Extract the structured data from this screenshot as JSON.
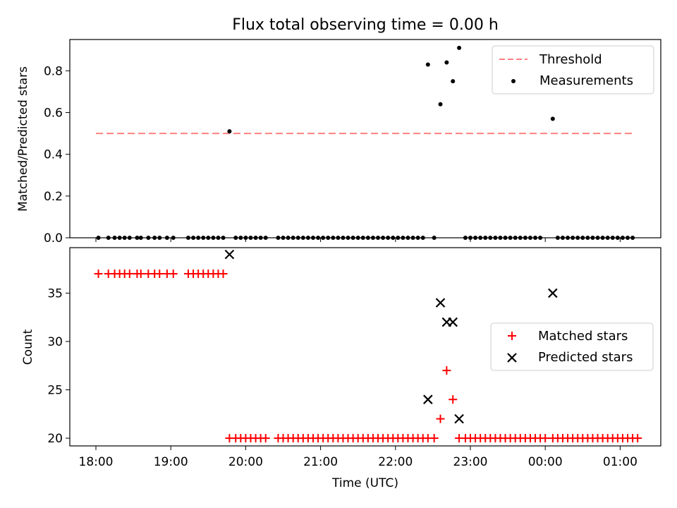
{
  "chart_data": [
    {
      "type": "scatter",
      "title": "Flux total observing time = 0.00 h",
      "xlabel": "",
      "ylabel": "Matched/Predicted stars",
      "ylim": [
        0,
        0.95
      ],
      "yticks": [
        0.0,
        0.2,
        0.4,
        0.6,
        0.8
      ],
      "ytick_labels": [
        "0.0",
        "0.2",
        "0.4",
        "0.6",
        "0.8"
      ],
      "legend_position": "top-right",
      "threshold": {
        "name": "Threshold",
        "value": 0.5,
        "x_start": "18:00",
        "x_end": "01:10",
        "color": "#ff8080",
        "style": "dashed"
      },
      "series": [
        {
          "name": "Measurements",
          "color": "#000000",
          "points": [
            {
              "x": "18:02",
              "y": 0.0
            },
            {
              "x": "18:10",
              "y": 0.0
            },
            {
              "x": "18:15",
              "y": 0.0
            },
            {
              "x": "18:19",
              "y": 0.0
            },
            {
              "x": "18:23",
              "y": 0.0
            },
            {
              "x": "18:27",
              "y": 0.0
            },
            {
              "x": "18:33",
              "y": 0.0
            },
            {
              "x": "18:36",
              "y": 0.0
            },
            {
              "x": "18:42",
              "y": 0.0
            },
            {
              "x": "18:47",
              "y": 0.0
            },
            {
              "x": "18:51",
              "y": 0.0
            },
            {
              "x": "18:57",
              "y": 0.0
            },
            {
              "x": "19:02",
              "y": 0.0
            },
            {
              "x": "19:14",
              "y": 0.0
            },
            {
              "x": "19:18",
              "y": 0.0
            },
            {
              "x": "19:22",
              "y": 0.0
            },
            {
              "x": "19:26",
              "y": 0.0
            },
            {
              "x": "19:30",
              "y": 0.0
            },
            {
              "x": "19:34",
              "y": 0.0
            },
            {
              "x": "19:38",
              "y": 0.0
            },
            {
              "x": "19:42",
              "y": 0.0
            },
            {
              "x": "19:47",
              "y": 0.51
            },
            {
              "x": "19:52",
              "y": 0.0
            },
            {
              "x": "19:56",
              "y": 0.0
            },
            {
              "x": "20:00",
              "y": 0.0
            },
            {
              "x": "20:04",
              "y": 0.0
            },
            {
              "x": "20:08",
              "y": 0.0
            },
            {
              "x": "20:12",
              "y": 0.0
            },
            {
              "x": "20:16",
              "y": 0.0
            },
            {
              "x": "20:26",
              "y": 0.0
            },
            {
              "x": "20:30",
              "y": 0.0
            },
            {
              "x": "20:34",
              "y": 0.0
            },
            {
              "x": "20:38",
              "y": 0.0
            },
            {
              "x": "20:42",
              "y": 0.0
            },
            {
              "x": "20:46",
              "y": 0.0
            },
            {
              "x": "20:50",
              "y": 0.0
            },
            {
              "x": "20:54",
              "y": 0.0
            },
            {
              "x": "20:58",
              "y": 0.0
            },
            {
              "x": "21:02",
              "y": 0.0
            },
            {
              "x": "21:06",
              "y": 0.0
            },
            {
              "x": "21:10",
              "y": 0.0
            },
            {
              "x": "21:14",
              "y": 0.0
            },
            {
              "x": "21:18",
              "y": 0.0
            },
            {
              "x": "21:22",
              "y": 0.0
            },
            {
              "x": "21:26",
              "y": 0.0
            },
            {
              "x": "21:30",
              "y": 0.0
            },
            {
              "x": "21:34",
              "y": 0.0
            },
            {
              "x": "21:38",
              "y": 0.0
            },
            {
              "x": "21:42",
              "y": 0.0
            },
            {
              "x": "21:46",
              "y": 0.0
            },
            {
              "x": "21:50",
              "y": 0.0
            },
            {
              "x": "21:54",
              "y": 0.0
            },
            {
              "x": "21:58",
              "y": 0.0
            },
            {
              "x": "22:02",
              "y": 0.0
            },
            {
              "x": "22:06",
              "y": 0.0
            },
            {
              "x": "22:10",
              "y": 0.0
            },
            {
              "x": "22:14",
              "y": 0.0
            },
            {
              "x": "22:18",
              "y": 0.0
            },
            {
              "x": "22:22",
              "y": 0.0
            },
            {
              "x": "22:26",
              "y": 0.83
            },
            {
              "x": "22:31",
              "y": 0.0
            },
            {
              "x": "22:36",
              "y": 0.64
            },
            {
              "x": "22:41",
              "y": 0.84
            },
            {
              "x": "22:46",
              "y": 0.75
            },
            {
              "x": "22:51",
              "y": 0.91
            },
            {
              "x": "22:56",
              "y": 0.0
            },
            {
              "x": "23:00",
              "y": 0.0
            },
            {
              "x": "23:04",
              "y": 0.0
            },
            {
              "x": "23:08",
              "y": 0.0
            },
            {
              "x": "23:12",
              "y": 0.0
            },
            {
              "x": "23:16",
              "y": 0.0
            },
            {
              "x": "23:20",
              "y": 0.0
            },
            {
              "x": "23:24",
              "y": 0.0
            },
            {
              "x": "23:28",
              "y": 0.0
            },
            {
              "x": "23:32",
              "y": 0.0
            },
            {
              "x": "23:36",
              "y": 0.0
            },
            {
              "x": "23:40",
              "y": 0.0
            },
            {
              "x": "23:44",
              "y": 0.0
            },
            {
              "x": "23:48",
              "y": 0.0
            },
            {
              "x": "23:52",
              "y": 0.0
            },
            {
              "x": "23:56",
              "y": 0.0
            },
            {
              "x": "00:06",
              "y": 0.57
            },
            {
              "x": "00:10",
              "y": 0.0
            },
            {
              "x": "00:14",
              "y": 0.0
            },
            {
              "x": "00:18",
              "y": 0.0
            },
            {
              "x": "00:22",
              "y": 0.0
            },
            {
              "x": "00:26",
              "y": 0.0
            },
            {
              "x": "00:30",
              "y": 0.0
            },
            {
              "x": "00:34",
              "y": 0.0
            },
            {
              "x": "00:38",
              "y": 0.0
            },
            {
              "x": "00:42",
              "y": 0.0
            },
            {
              "x": "00:46",
              "y": 0.0
            },
            {
              "x": "00:50",
              "y": 0.0
            },
            {
              "x": "00:54",
              "y": 0.0
            },
            {
              "x": "00:58",
              "y": 0.0
            },
            {
              "x": "01:02",
              "y": 0.0
            },
            {
              "x": "01:06",
              "y": 0.0
            },
            {
              "x": "01:10",
              "y": 0.0
            }
          ]
        }
      ]
    },
    {
      "type": "scatter",
      "title": "",
      "xlabel": "Time (UTC)",
      "ylabel": "Count",
      "ylim": [
        19.2,
        39.7
      ],
      "yticks": [
        20,
        25,
        30,
        35
      ],
      "ytick_labels": [
        "20",
        "25",
        "30",
        "35"
      ],
      "xticks": [
        "18:00",
        "19:00",
        "20:00",
        "21:00",
        "22:00",
        "23:00",
        "00:00",
        "01:00"
      ],
      "xtick_labels": [
        "18:00",
        "19:00",
        "20:00",
        "21:00",
        "22:00",
        "23:00",
        "00:00",
        "01:00"
      ],
      "legend_position": "center-right",
      "series": [
        {
          "name": "Matched stars",
          "color": "#ff0000",
          "marker": "plus",
          "points": [
            {
              "x": "18:02",
              "y": 37
            },
            {
              "x": "18:10",
              "y": 37
            },
            {
              "x": "18:15",
              "y": 37
            },
            {
              "x": "18:19",
              "y": 37
            },
            {
              "x": "18:23",
              "y": 37
            },
            {
              "x": "18:27",
              "y": 37
            },
            {
              "x": "18:33",
              "y": 37
            },
            {
              "x": "18:36",
              "y": 37
            },
            {
              "x": "18:42",
              "y": 37
            },
            {
              "x": "18:47",
              "y": 37
            },
            {
              "x": "18:51",
              "y": 37
            },
            {
              "x": "18:57",
              "y": 37
            },
            {
              "x": "19:02",
              "y": 37
            },
            {
              "x": "19:14",
              "y": 37
            },
            {
              "x": "19:18",
              "y": 37
            },
            {
              "x": "19:22",
              "y": 37
            },
            {
              "x": "19:26",
              "y": 37
            },
            {
              "x": "19:30",
              "y": 37
            },
            {
              "x": "19:34",
              "y": 37
            },
            {
              "x": "19:38",
              "y": 37
            },
            {
              "x": "19:42",
              "y": 37
            },
            {
              "x": "19:47",
              "y": 20
            },
            {
              "x": "19:52",
              "y": 20
            },
            {
              "x": "19:56",
              "y": 20
            },
            {
              "x": "20:00",
              "y": 20
            },
            {
              "x": "20:04",
              "y": 20
            },
            {
              "x": "20:08",
              "y": 20
            },
            {
              "x": "20:12",
              "y": 20
            },
            {
              "x": "20:16",
              "y": 20
            },
            {
              "x": "20:26",
              "y": 20
            },
            {
              "x": "20:30",
              "y": 20
            },
            {
              "x": "20:34",
              "y": 20
            },
            {
              "x": "20:38",
              "y": 20
            },
            {
              "x": "20:42",
              "y": 20
            },
            {
              "x": "20:46",
              "y": 20
            },
            {
              "x": "20:50",
              "y": 20
            },
            {
              "x": "20:54",
              "y": 20
            },
            {
              "x": "20:58",
              "y": 20
            },
            {
              "x": "21:02",
              "y": 20
            },
            {
              "x": "21:06",
              "y": 20
            },
            {
              "x": "21:10",
              "y": 20
            },
            {
              "x": "21:14",
              "y": 20
            },
            {
              "x": "21:18",
              "y": 20
            },
            {
              "x": "21:22",
              "y": 20
            },
            {
              "x": "21:26",
              "y": 20
            },
            {
              "x": "21:30",
              "y": 20
            },
            {
              "x": "21:34",
              "y": 20
            },
            {
              "x": "21:38",
              "y": 20
            },
            {
              "x": "21:42",
              "y": 20
            },
            {
              "x": "21:46",
              "y": 20
            },
            {
              "x": "21:50",
              "y": 20
            },
            {
              "x": "21:54",
              "y": 20
            },
            {
              "x": "21:58",
              "y": 20
            },
            {
              "x": "22:02",
              "y": 20
            },
            {
              "x": "22:06",
              "y": 20
            },
            {
              "x": "22:10",
              "y": 20
            },
            {
              "x": "22:14",
              "y": 20
            },
            {
              "x": "22:18",
              "y": 20
            },
            {
              "x": "22:22",
              "y": 20
            },
            {
              "x": "22:26",
              "y": 20
            },
            {
              "x": "22:31",
              "y": 20
            },
            {
              "x": "22:36",
              "y": 22
            },
            {
              "x": "22:41",
              "y": 27
            },
            {
              "x": "22:46",
              "y": 24
            },
            {
              "x": "22:51",
              "y": 20
            },
            {
              "x": "22:56",
              "y": 20
            },
            {
              "x": "23:00",
              "y": 20
            },
            {
              "x": "23:04",
              "y": 20
            },
            {
              "x": "23:08",
              "y": 20
            },
            {
              "x": "23:12",
              "y": 20
            },
            {
              "x": "23:16",
              "y": 20
            },
            {
              "x": "23:20",
              "y": 20
            },
            {
              "x": "23:24",
              "y": 20
            },
            {
              "x": "23:28",
              "y": 20
            },
            {
              "x": "23:32",
              "y": 20
            },
            {
              "x": "23:36",
              "y": 20
            },
            {
              "x": "23:40",
              "y": 20
            },
            {
              "x": "23:44",
              "y": 20
            },
            {
              "x": "23:48",
              "y": 20
            },
            {
              "x": "23:52",
              "y": 20
            },
            {
              "x": "23:56",
              "y": 20
            },
            {
              "x": "00:00",
              "y": 20
            },
            {
              "x": "00:06",
              "y": 20
            },
            {
              "x": "00:10",
              "y": 20
            },
            {
              "x": "00:14",
              "y": 20
            },
            {
              "x": "00:18",
              "y": 20
            },
            {
              "x": "00:22",
              "y": 20
            },
            {
              "x": "00:26",
              "y": 20
            },
            {
              "x": "00:30",
              "y": 20
            },
            {
              "x": "00:34",
              "y": 20
            },
            {
              "x": "00:38",
              "y": 20
            },
            {
              "x": "00:42",
              "y": 20
            },
            {
              "x": "00:46",
              "y": 20
            },
            {
              "x": "00:50",
              "y": 20
            },
            {
              "x": "00:54",
              "y": 20
            },
            {
              "x": "00:58",
              "y": 20
            },
            {
              "x": "01:02",
              "y": 20
            },
            {
              "x": "01:06",
              "y": 20
            },
            {
              "x": "01:10",
              "y": 20
            },
            {
              "x": "01:14",
              "y": 20
            }
          ]
        },
        {
          "name": "Predicted stars",
          "color": "#000000",
          "marker": "x",
          "points": [
            {
              "x": "19:47",
              "y": 39
            },
            {
              "x": "22:26",
              "y": 24
            },
            {
              "x": "22:36",
              "y": 34
            },
            {
              "x": "22:41",
              "y": 32
            },
            {
              "x": "22:46",
              "y": 32
            },
            {
              "x": "22:51",
              "y": 22
            },
            {
              "x": "00:06",
              "y": 35
            }
          ]
        }
      ]
    }
  ]
}
